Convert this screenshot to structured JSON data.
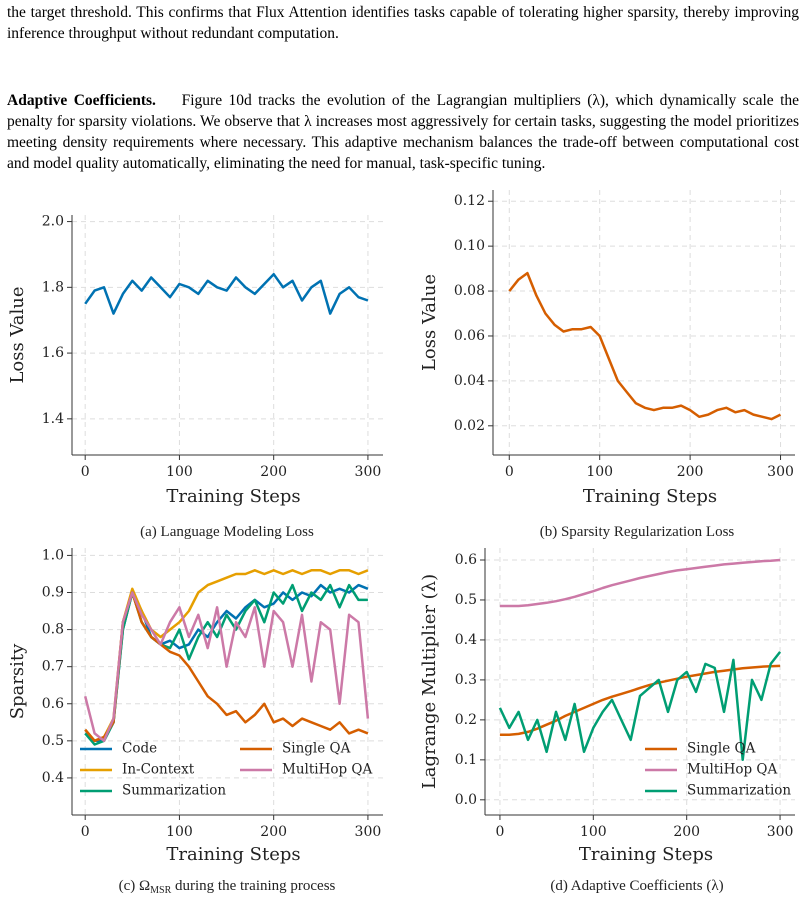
{
  "paragraphs": [
    {
      "text": "the target threshold. This confirms that Flux Attention identifies tasks capable of tolerating higher sparsity, thereby improving inference throughput without redundant computation."
    },
    {
      "heading": "Adaptive Coefficients.",
      "text": "Figure 10d tracks the evolution of the Lagrangian multipliers (λ), which dynamically scale the penalty for sparsity violations. We observe that λ increases most aggressively for certain tasks, suggesting the model prioritizes meeting density requirements where necessary. This adaptive mechanism balances the trade-off between computational cost and model quality automatically, eliminating the need for manual, task-specific tuning."
    }
  ],
  "chart_data": [
    {
      "type": "line",
      "caption": "(a) Language Modeling Loss",
      "xlabel": "Training Steps",
      "ylabel": "Loss Value",
      "x": [
        0,
        10,
        20,
        30,
        40,
        50,
        60,
        70,
        80,
        90,
        100,
        110,
        120,
        130,
        140,
        150,
        160,
        170,
        180,
        190,
        200,
        210,
        220,
        230,
        240,
        250,
        260,
        270,
        280,
        290,
        300
      ],
      "values": [
        1.75,
        1.79,
        1.8,
        1.72,
        1.78,
        1.82,
        1.79,
        1.83,
        1.8,
        1.77,
        1.81,
        1.8,
        1.78,
        1.82,
        1.8,
        1.79,
        1.83,
        1.8,
        1.78,
        1.81,
        1.84,
        1.8,
        1.82,
        1.76,
        1.8,
        1.82,
        1.72,
        1.78,
        1.8,
        1.77,
        1.76
      ],
      "color": "#0072b2",
      "xlim": [
        -14,
        316
      ],
      "xticks": [
        0,
        100,
        200,
        300
      ],
      "ylim": [
        1.29,
        2.02
      ],
      "yticks": [
        1.4,
        1.6,
        1.8,
        {
          "value": 2,
          "label": "2.0"
        }
      ],
      "grid": true
    },
    {
      "type": "line",
      "caption": "(b) Sparsity Regularization Loss",
      "xlabel": "Training Steps",
      "ylabel": "Loss Value",
      "x": [
        0,
        10,
        20,
        30,
        40,
        50,
        60,
        70,
        80,
        90,
        100,
        110,
        120,
        130,
        140,
        150,
        160,
        170,
        180,
        190,
        200,
        210,
        220,
        230,
        240,
        250,
        260,
        270,
        280,
        290,
        300
      ],
      "values": [
        0.08,
        0.085,
        0.088,
        0.078,
        0.07,
        0.065,
        0.062,
        0.063,
        0.063,
        0.064,
        0.06,
        0.05,
        0.04,
        0.035,
        0.03,
        0.028,
        0.027,
        0.028,
        0.028,
        0.029,
        0.027,
        0.024,
        0.025,
        0.027,
        0.028,
        0.026,
        0.027,
        0.025,
        0.024,
        0.023,
        0.025
      ],
      "color": "#d55e00",
      "xlim": [
        -18,
        316
      ],
      "xticks": [
        0,
        100,
        200,
        300
      ],
      "ylim": [
        0.007,
        0.125
      ],
      "yticks": [
        0.02,
        0.04,
        0.06,
        0.08,
        {
          "value": 0.1,
          "label": "0.10"
        },
        0.12
      ],
      "grid": true
    },
    {
      "type": "line",
      "caption": "(c) Ω",
      "caption_sub": "MSR",
      "caption_rest": " during the training process",
      "xlabel": "Training Steps",
      "ylabel": "Sparsity",
      "x": [
        0,
        10,
        20,
        30,
        40,
        50,
        60,
        70,
        80,
        90,
        100,
        110,
        120,
        130,
        140,
        150,
        160,
        170,
        180,
        190,
        200,
        210,
        220,
        230,
        240,
        250,
        260,
        270,
        280,
        290,
        300
      ],
      "series": [
        {
          "name": "Code",
          "color": "#0072b2",
          "values": [
            0.52,
            0.5,
            0.5,
            0.55,
            0.8,
            0.9,
            0.85,
            0.78,
            0.76,
            0.77,
            0.75,
            0.76,
            0.8,
            0.78,
            0.82,
            0.85,
            0.83,
            0.86,
            0.88,
            0.86,
            0.87,
            0.9,
            0.88,
            0.9,
            0.89,
            0.92,
            0.9,
            0.91,
            0.9,
            0.92,
            0.91
          ]
        },
        {
          "name": "In-Context",
          "color": "#e69f00",
          "values": [
            0.53,
            0.5,
            0.51,
            0.56,
            0.82,
            0.91,
            0.85,
            0.8,
            0.78,
            0.8,
            0.82,
            0.85,
            0.9,
            0.92,
            0.93,
            0.94,
            0.95,
            0.95,
            0.96,
            0.95,
            0.96,
            0.95,
            0.96,
            0.95,
            0.96,
            0.96,
            0.95,
            0.96,
            0.96,
            0.95,
            0.96
          ]
        },
        {
          "name": "Summarization",
          "color": "#009e73",
          "values": [
            0.52,
            0.49,
            0.5,
            0.55,
            0.8,
            0.9,
            0.82,
            0.78,
            0.76,
            0.75,
            0.8,
            0.72,
            0.78,
            0.82,
            0.78,
            0.84,
            0.8,
            0.85,
            0.88,
            0.82,
            0.9,
            0.87,
            0.92,
            0.85,
            0.9,
            0.88,
            0.92,
            0.86,
            0.92,
            0.88,
            0.88
          ]
        },
        {
          "name": "Single QA",
          "color": "#d55e00",
          "values": [
            0.53,
            0.5,
            0.51,
            0.55,
            0.82,
            0.9,
            0.82,
            0.78,
            0.76,
            0.74,
            0.73,
            0.7,
            0.66,
            0.62,
            0.6,
            0.57,
            0.58,
            0.55,
            0.57,
            0.6,
            0.55,
            0.56,
            0.54,
            0.56,
            0.55,
            0.54,
            0.53,
            0.55,
            0.52,
            0.53,
            0.52
          ]
        },
        {
          "name": "MultiHop QA",
          "color": "#cc79a7",
          "values": [
            0.62,
            0.52,
            0.5,
            0.56,
            0.82,
            0.9,
            0.84,
            0.8,
            0.76,
            0.82,
            0.86,
            0.78,
            0.84,
            0.75,
            0.86,
            0.7,
            0.82,
            0.78,
            0.86,
            0.7,
            0.85,
            0.82,
            0.7,
            0.84,
            0.66,
            0.82,
            0.8,
            0.6,
            0.84,
            0.82,
            0.56
          ]
        }
      ],
      "legend": "lower left",
      "legend_columns": 2,
      "xlim": [
        -14,
        316
      ],
      "xticks": [
        0,
        100,
        200,
        300
      ],
      "ylim": [
        0.3,
        1.02
      ],
      "yticks": [
        0.4,
        0.5,
        0.6,
        0.7,
        0.8,
        0.9,
        {
          "value": 1,
          "label": "1.0"
        }
      ],
      "grid": true
    },
    {
      "type": "line",
      "caption": "(d) Adaptive Coefficients (λ)",
      "xlabel": "Training Steps",
      "ylabel": "Lagrange Multiplier (λ)",
      "x": [
        0,
        10,
        20,
        30,
        40,
        50,
        60,
        70,
        80,
        90,
        100,
        110,
        120,
        130,
        140,
        150,
        160,
        170,
        180,
        190,
        200,
        210,
        220,
        230,
        240,
        250,
        260,
        270,
        280,
        290,
        300
      ],
      "series": [
        {
          "name": "Single QA",
          "color": "#d55e00",
          "values": [
            0.163,
            0.163,
            0.165,
            0.17,
            0.178,
            0.188,
            0.198,
            0.21,
            0.22,
            0.23,
            0.24,
            0.25,
            0.258,
            0.265,
            0.272,
            0.28,
            0.287,
            0.293,
            0.298,
            0.303,
            0.308,
            0.312,
            0.316,
            0.32,
            0.323,
            0.326,
            0.329,
            0.331,
            0.333,
            0.334,
            0.335
          ]
        },
        {
          "name": "MultiHop QA",
          "color": "#cc79a7",
          "values": [
            0.485,
            0.485,
            0.485,
            0.487,
            0.49,
            0.493,
            0.497,
            0.502,
            0.508,
            0.515,
            0.522,
            0.53,
            0.537,
            0.543,
            0.549,
            0.555,
            0.56,
            0.565,
            0.57,
            0.574,
            0.577,
            0.58,
            0.583,
            0.586,
            0.589,
            0.591,
            0.593,
            0.595,
            0.597,
            0.598,
            0.6
          ]
        },
        {
          "name": "Summarization",
          "color": "#009e73",
          "values": [
            0.23,
            0.18,
            0.22,
            0.15,
            0.2,
            0.12,
            0.22,
            0.15,
            0.24,
            0.12,
            0.18,
            0.22,
            0.25,
            0.2,
            0.15,
            0.26,
            0.28,
            0.3,
            0.22,
            0.3,
            0.32,
            0.27,
            0.34,
            0.33,
            0.22,
            0.35,
            0.1,
            0.3,
            0.25,
            0.34,
            0.37
          ]
        }
      ],
      "legend": "lower right",
      "legend_columns": 1,
      "xlim": [
        -16,
        316
      ],
      "xticks": [
        0,
        100,
        200,
        300
      ],
      "ylim": [
        -0.038,
        0.63
      ],
      "yticks": [
        {
          "value": 0,
          "label": "0.0"
        },
        0.1,
        0.2,
        0.3,
        0.4,
        0.5,
        0.6
      ],
      "grid": true
    }
  ]
}
